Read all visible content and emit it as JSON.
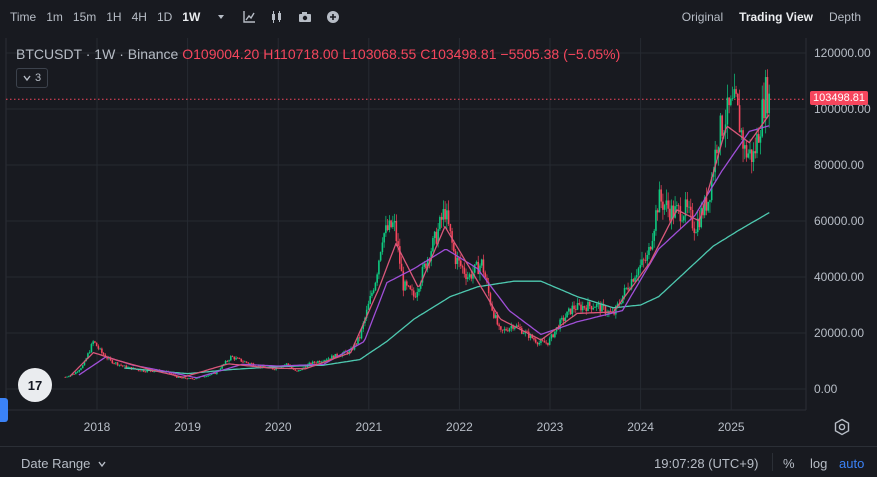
{
  "toolbar": {
    "time_label": "Time",
    "timeframes": [
      "1m",
      "15m",
      "1H",
      "4H",
      "1D",
      "1W"
    ],
    "active_timeframe": "1W",
    "icons": [
      "chevron-down-icon",
      "indicators-icon",
      "candle-type-icon",
      "camera-icon",
      "add-icon"
    ],
    "views": [
      "Original",
      "Trading View",
      "Depth"
    ],
    "active_view": "Trading View"
  },
  "legend": {
    "symbol": "BTCUSDT · 1W · Binance",
    "open": "O109004.20",
    "high": "H110718.00",
    "low": "L103068.55",
    "close": "C103498.81",
    "change": "−5505.38 (−5.05%)",
    "indicator_count": "3"
  },
  "price_tag": "103498.81",
  "tv_logo": "17",
  "bottom": {
    "date_range": "Date Range",
    "clock": "19:07:28 (UTC+9)",
    "percent": "%",
    "log": "log",
    "auto": "auto"
  },
  "chart_data": {
    "type": "candlestick",
    "title": "",
    "xlabel": "",
    "ylabel": "",
    "ylim": [
      -5000,
      120000
    ],
    "last_price": 103498.81,
    "grid": true,
    "y_ticks": [
      0,
      20000,
      40000,
      60000,
      80000,
      100000,
      120000
    ],
    "y_tick_labels": [
      "0.00",
      "20000.00",
      "40000.00",
      "60000.00",
      "80000.00",
      "100000.00",
      "120000.00"
    ],
    "x_ticks": [
      2018,
      2019,
      2020,
      2021,
      2022,
      2023,
      2024,
      2025
    ],
    "x_tick_labels": [
      "2018",
      "2019",
      "2020",
      "2021",
      "2022",
      "2023",
      "2024",
      "2025"
    ],
    "colors": {
      "up": "#0ecb81",
      "down": "#f6465d",
      "ma_fast": "#d9577a",
      "ma_mid": "#a04fd8",
      "ma_slow": "#4ec9b0"
    },
    "price_anchors": [
      [
        2017.65,
        4300
      ],
      [
        2017.75,
        5500
      ],
      [
        2017.85,
        8500
      ],
      [
        2017.96,
        17000
      ],
      [
        2018.05,
        13000
      ],
      [
        2018.15,
        10000
      ],
      [
        2018.3,
        8000
      ],
      [
        2018.5,
        6500
      ],
      [
        2018.75,
        6400
      ],
      [
        2018.9,
        4000
      ],
      [
        2019.05,
        3600
      ],
      [
        2019.3,
        5500
      ],
      [
        2019.48,
        11500
      ],
      [
        2019.6,
        10000
      ],
      [
        2019.8,
        8000
      ],
      [
        2019.95,
        7200
      ],
      [
        2020.1,
        9000
      ],
      [
        2020.2,
        6000
      ],
      [
        2020.35,
        9000
      ],
      [
        2020.6,
        11500
      ],
      [
        2020.8,
        13500
      ],
      [
        2020.9,
        18500
      ],
      [
        2020.99,
        29000
      ],
      [
        2021.08,
        40000
      ],
      [
        2021.15,
        55000
      ],
      [
        2021.28,
        59000
      ],
      [
        2021.38,
        37000
      ],
      [
        2021.5,
        33000
      ],
      [
        2021.65,
        47000
      ],
      [
        2021.75,
        55000
      ],
      [
        2021.84,
        64000
      ],
      [
        2021.95,
        47000
      ],
      [
        2022.1,
        40000
      ],
      [
        2022.25,
        45000
      ],
      [
        2022.35,
        30000
      ],
      [
        2022.45,
        20000
      ],
      [
        2022.6,
        23000
      ],
      [
        2022.75,
        19500
      ],
      [
        2022.88,
        16500
      ],
      [
        2022.98,
        16600
      ],
      [
        2023.1,
        23000
      ],
      [
        2023.25,
        29000
      ],
      [
        2023.5,
        30000
      ],
      [
        2023.7,
        26500
      ],
      [
        2023.82,
        34500
      ],
      [
        2023.95,
        42000
      ],
      [
        2024.08,
        47000
      ],
      [
        2024.2,
        68000
      ],
      [
        2024.35,
        63000
      ],
      [
        2024.5,
        64000
      ],
      [
        2024.6,
        58000
      ],
      [
        2024.75,
        68000
      ],
      [
        2024.85,
        90000
      ],
      [
        2024.95,
        98000
      ],
      [
        2025.05,
        102000
      ],
      [
        2025.15,
        85000
      ],
      [
        2025.25,
        83000
      ],
      [
        2025.32,
        95000
      ],
      [
        2025.38,
        106000
      ],
      [
        2025.42,
        103500
      ]
    ],
    "ma_fast": [
      [
        2017.7,
        4500
      ],
      [
        2017.96,
        13000
      ],
      [
        2018.2,
        10500
      ],
      [
        2018.6,
        6800
      ],
      [
        2018.95,
        4200
      ],
      [
        2019.45,
        9000
      ],
      [
        2019.9,
        7500
      ],
      [
        2020.3,
        7200
      ],
      [
        2020.8,
        13000
      ],
      [
        2021.1,
        35000
      ],
      [
        2021.3,
        52000
      ],
      [
        2021.55,
        36000
      ],
      [
        2021.84,
        58000
      ],
      [
        2022.1,
        44000
      ],
      [
        2022.45,
        25000
      ],
      [
        2022.9,
        17500
      ],
      [
        2023.3,
        27000
      ],
      [
        2023.7,
        27500
      ],
      [
        2024.1,
        45000
      ],
      [
        2024.4,
        64000
      ],
      [
        2024.65,
        60000
      ],
      [
        2024.95,
        94000
      ],
      [
        2025.2,
        88000
      ],
      [
        2025.42,
        98000
      ]
    ],
    "ma_mid": [
      [
        2017.8,
        5000
      ],
      [
        2018.1,
        11500
      ],
      [
        2018.4,
        8500
      ],
      [
        2018.8,
        6000
      ],
      [
        2019.1,
        4000
      ],
      [
        2019.6,
        8800
      ],
      [
        2020.0,
        8200
      ],
      [
        2020.5,
        8800
      ],
      [
        2020.95,
        17000
      ],
      [
        2021.2,
        38000
      ],
      [
        2021.5,
        43000
      ],
      [
        2021.85,
        50000
      ],
      [
        2022.2,
        43000
      ],
      [
        2022.55,
        28000
      ],
      [
        2022.9,
        19500
      ],
      [
        2023.3,
        24000
      ],
      [
        2023.8,
        28000
      ],
      [
        2024.2,
        50000
      ],
      [
        2024.6,
        62000
      ],
      [
        2024.9,
        78000
      ],
      [
        2025.2,
        92000
      ],
      [
        2025.42,
        94000
      ]
    ],
    "ma_slow": [
      [
        2018.3,
        7500
      ],
      [
        2019.0,
        5500
      ],
      [
        2019.5,
        7000
      ],
      [
        2020.0,
        8000
      ],
      [
        2020.5,
        8500
      ],
      [
        2020.9,
        10500
      ],
      [
        2021.2,
        17000
      ],
      [
        2021.5,
        25000
      ],
      [
        2021.9,
        33000
      ],
      [
        2022.2,
        36500
      ],
      [
        2022.6,
        38500
      ],
      [
        2022.9,
        38500
      ],
      [
        2023.3,
        33000
      ],
      [
        2023.7,
        29000
      ],
      [
        2024.0,
        30000
      ],
      [
        2024.2,
        33000
      ],
      [
        2024.5,
        42000
      ],
      [
        2024.8,
        51000
      ],
      [
        2025.1,
        57000
      ],
      [
        2025.42,
        63000
      ]
    ]
  }
}
